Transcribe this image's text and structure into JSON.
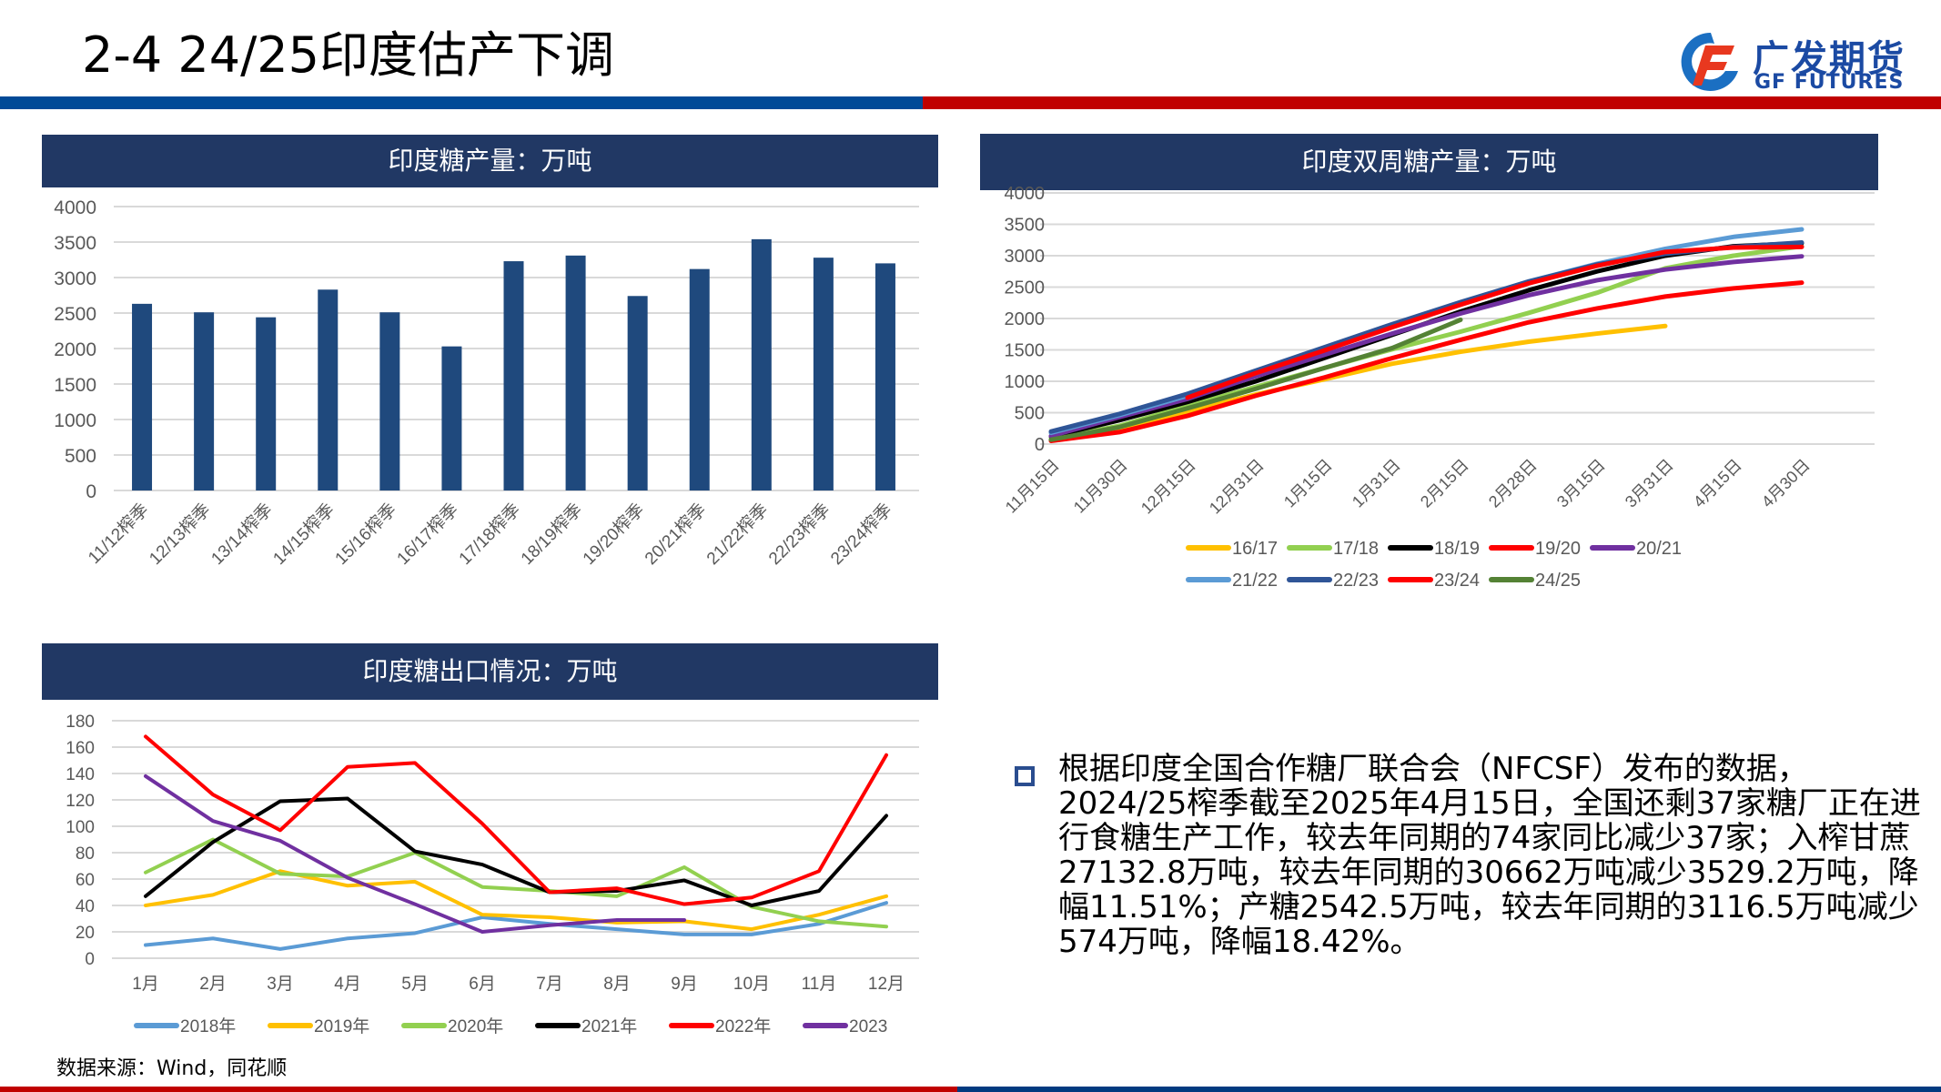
{
  "page": {
    "title": "2-4 24/25印度估产下调",
    "source": "数据来源：Wind，同花顺"
  },
  "logo": {
    "cn": "广发期货",
    "en": "GF FUTURES",
    "brand_blue": "#1b4aa3",
    "brand_red": "#e8381f"
  },
  "colors": {
    "header_blue": "#004a97",
    "header_red": "#c00000",
    "panel_title_bg": "#213864",
    "bar": "#1f497d"
  },
  "summary": {
    "text": "根据印度全国合作糖厂联合会（NFCSF）发布的数据，2024/25榨季截至2025年4月15日，全国还剩37家糖厂正在进行食糖生产工作，较去年同期的74家同比减少37家；入榨甘蔗27132.8万吨，较去年同期的30662万吨减少3529.2万吨，降幅11.51%；产糖2542.5万吨，较去年同期的3116.5万吨减少574万吨，降幅18.42%。"
  },
  "chart_data": [
    {
      "id": "production",
      "type": "bar",
      "title": "印度糖产量：万吨",
      "xlabel": "",
      "ylabel": "",
      "ylim": [
        0,
        4000
      ],
      "yticks": [
        0,
        500,
        1000,
        1500,
        2000,
        2500,
        3000,
        3500,
        4000
      ],
      "grid": true,
      "categories": [
        "11/12榨季",
        "12/13榨季",
        "13/14榨季",
        "14/15榨季",
        "15/16榨季",
        "16/17榨季",
        "17/18榨季",
        "18/19榨季",
        "19/20榨季",
        "20/21榨季",
        "21/22榨季",
        "22/23榨季",
        "23/24榨季"
      ],
      "values": [
        2630,
        2510,
        2440,
        2830,
        2510,
        2030,
        3230,
        3310,
        2740,
        3120,
        3540,
        3280,
        3200
      ],
      "color": "#1f497d"
    },
    {
      "id": "biweekly",
      "type": "line",
      "title": "印度双周糖产量：万吨",
      "xlabel": "",
      "ylabel": "",
      "ylim": [
        0,
        4000
      ],
      "yticks": [
        0,
        500,
        1000,
        1500,
        2000,
        2500,
        3000,
        3500,
        4000
      ],
      "grid": true,
      "legend_position": "bottom",
      "x": [
        "11月15日",
        "11月30日",
        "12月15日",
        "12月31日",
        "1月15日",
        "1月31日",
        "2月15日",
        "2月28日",
        "3月15日",
        "3月31日",
        "4月15日",
        "4月30日"
      ],
      "series": [
        {
          "name": "16/17",
          "color": "#ffc000",
          "values": [
            60,
            250,
            520,
            790,
            1030,
            1280,
            1470,
            1630,
            1760,
            1880,
            null,
            null
          ]
        },
        {
          "name": "17/18",
          "color": "#92d050",
          "values": [
            80,
            290,
            610,
            910,
            1210,
            1510,
            1790,
            2090,
            2410,
            2800,
            3000,
            3150
          ]
        },
        {
          "name": "18/19",
          "color": "#000000",
          "values": [
            120,
            380,
            670,
            1000,
            1370,
            1740,
            2110,
            2450,
            2750,
            3000,
            3150,
            3200
          ]
        },
        {
          "name": "19/20",
          "color": "#ff0000",
          "values": [
            50,
            190,
            450,
            770,
            1060,
            1370,
            1660,
            1940,
            2160,
            2350,
            2480,
            2570
          ]
        },
        {
          "name": "20/21",
          "color": "#7030a0",
          "values": [
            130,
            430,
            720,
            1080,
            1420,
            1760,
            2080,
            2370,
            2610,
            2780,
            2900,
            2990
          ]
        },
        {
          "name": "21/22",
          "color": "#5b9bd5",
          "values": [
            180,
            460,
            770,
            1130,
            1500,
            1870,
            2240,
            2590,
            2870,
            3110,
            3300,
            3420
          ]
        },
        {
          "name": "22/23",
          "color": "#2f5597",
          "values": [
            200,
            480,
            800,
            1170,
            1540,
            1910,
            2260,
            2590,
            2860,
            3030,
            3140,
            3210
          ]
        },
        {
          "name": "23/24",
          "color": "#ff0000",
          "values": [
            null,
            null,
            740,
            1130,
            1490,
            1860,
            2220,
            2560,
            2840,
            3060,
            3130,
            3140
          ]
        },
        {
          "name": "24/25",
          "color": "#548235",
          "values": [
            70,
            270,
            570,
            880,
            1210,
            1530,
            1980,
            null,
            null,
            null,
            null,
            null
          ]
        }
      ]
    },
    {
      "id": "exports",
      "type": "line",
      "title": "印度糖出口情况：万吨",
      "xlabel": "",
      "ylabel": "",
      "ylim": [
        0,
        180
      ],
      "yticks": [
        0,
        20,
        40,
        60,
        80,
        100,
        120,
        140,
        160,
        180
      ],
      "grid": true,
      "legend_position": "bottom",
      "x": [
        "1月",
        "2月",
        "3月",
        "4月",
        "5月",
        "6月",
        "7月",
        "8月",
        "9月",
        "10月",
        "11月",
        "12月"
      ],
      "series": [
        {
          "name": "2018年",
          "color": "#5b9bd5",
          "values": [
            10,
            15,
            7,
            15,
            19,
            31,
            26,
            22,
            18,
            18,
            26,
            42
          ]
        },
        {
          "name": "2019年",
          "color": "#ffc000",
          "values": [
            40,
            48,
            66,
            55,
            58,
            33,
            31,
            27,
            28,
            22,
            33,
            47
          ]
        },
        {
          "name": "2020年",
          "color": "#92d050",
          "values": [
            65,
            90,
            64,
            62,
            80,
            54,
            51,
            47,
            69,
            39,
            28,
            24
          ]
        },
        {
          "name": "2021年",
          "color": "#000000",
          "values": [
            47,
            88,
            119,
            121,
            81,
            71,
            50,
            51,
            59,
            40,
            51,
            108
          ]
        },
        {
          "name": "2022年",
          "color": "#ff0000",
          "values": [
            168,
            124,
            97,
            145,
            148,
            102,
            50,
            53,
            41,
            46,
            66,
            154
          ]
        },
        {
          "name": "2023",
          "color": "#7030a0",
          "values": [
            138,
            104,
            89,
            61,
            41,
            20,
            25,
            29,
            29,
            null,
            null,
            null
          ]
        }
      ]
    }
  ]
}
